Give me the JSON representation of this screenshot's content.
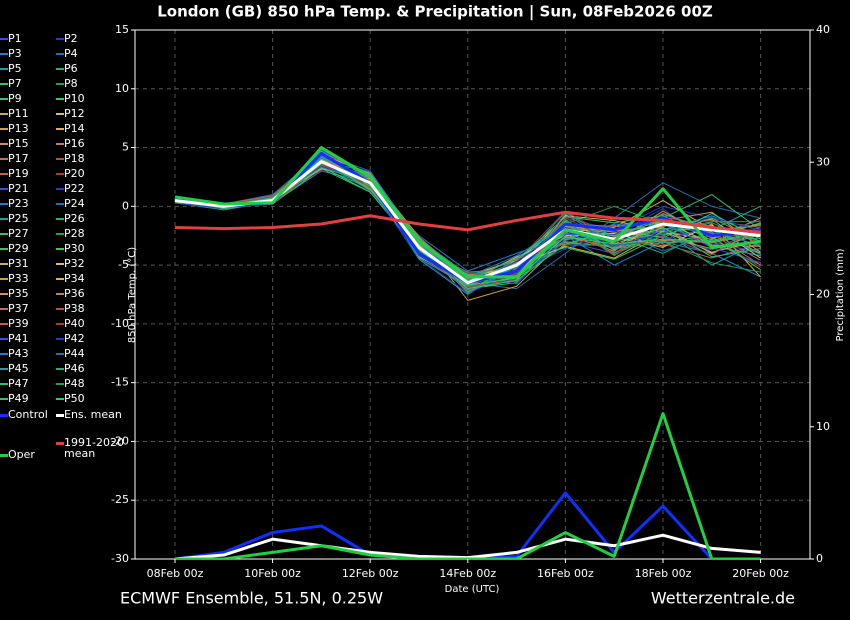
{
  "chart_data": {
    "type": "line",
    "title": "London  (GB)  850 hPa Temp. & Precipitation | Sun, 08Feb2026 00Z",
    "xlabel": "Date (UTC)",
    "ylabel": "850 hPa Temp. (°C)",
    "y2label": "Precipitation (mm)",
    "footer_left": "ECMWF Ensemble, 51.5N, 0.25W",
    "footer_right": "Wetterzentrale.de",
    "categories": [
      "08Feb 00z",
      null,
      "10Feb 00z",
      null,
      "12Feb 00z",
      null,
      "14Feb 00z",
      null,
      "16Feb 00z",
      null,
      "18Feb 00z",
      null,
      "20Feb 00z"
    ],
    "ylim": [
      -30,
      15
    ],
    "yticks": [
      -30,
      -25,
      -20,
      -15,
      -10,
      -5,
      0,
      5,
      10,
      15
    ],
    "y2lim": [
      0,
      40
    ],
    "y2ticks": [
      0,
      10,
      20,
      30,
      40
    ],
    "grid": true,
    "series": [
      {
        "name": "P1",
        "color": "#3050e0",
        "values": [
          0.6,
          0.1,
          0.2,
          3.5,
          2.5,
          -3,
          -6,
          -5.5,
          -3,
          -4,
          -2,
          -3,
          -4
        ]
      },
      {
        "name": "P2",
        "color": "#2040c0",
        "values": [
          0.4,
          -0.2,
          0.8,
          4.2,
          1.5,
          -4,
          -7,
          -6,
          -1,
          -2,
          0,
          -1,
          -2
        ]
      },
      {
        "name": "P3",
        "color": "#2080d0",
        "values": [
          0.7,
          0,
          0.3,
          3,
          2,
          -2.5,
          -5.5,
          -4,
          -2.5,
          -5,
          -3,
          -4,
          -6
        ]
      },
      {
        "name": "P4",
        "color": "#2070b0",
        "values": [
          0.5,
          0.2,
          1,
          4.5,
          3,
          -3,
          -6.5,
          -7,
          -4,
          -1,
          2,
          0,
          -1
        ]
      },
      {
        "name": "P5",
        "color": "#20a0a0",
        "values": [
          0.3,
          -0.3,
          0.4,
          3.8,
          1.8,
          -4.5,
          -7.5,
          -5,
          -0.5,
          -3,
          -2,
          -5,
          -3
        ]
      },
      {
        "name": "P6",
        "color": "#20b080",
        "values": [
          0.8,
          0.1,
          0.6,
          5,
          2.2,
          -3.2,
          -6,
          -4.5,
          -2,
          -2.5,
          -4,
          -2,
          0
        ]
      },
      {
        "name": "P7",
        "color": "#30c070",
        "values": [
          0.6,
          0,
          0.2,
          3.2,
          1.2,
          -3.8,
          -6.8,
          -6,
          -3,
          -3.5,
          -1,
          1,
          -2
        ]
      },
      {
        "name": "P8",
        "color": "#20a050",
        "values": [
          0.4,
          0.1,
          0.9,
          4,
          2.8,
          -2.8,
          -5.8,
          -5.2,
          -1.5,
          0,
          -1.5,
          -3,
          -5
        ]
      },
      {
        "name": "P9",
        "color": "#40c060",
        "values": [
          0.5,
          -0.1,
          0.5,
          3.6,
          2,
          -3.6,
          -7,
          -6.5,
          -2,
          -2,
          -3,
          -2.5,
          -1.5
        ]
      },
      {
        "name": "P10",
        "color": "#30d050",
        "values": [
          0.7,
          0.2,
          0.3,
          4.4,
          1.6,
          -3.4,
          -6.2,
          -4.8,
          -3.5,
          -4.5,
          -2.5,
          -1,
          -3
        ]
      },
      {
        "name": "P11",
        "color": "#c0b060",
        "values": [
          0.5,
          0,
          0.7,
          3.9,
          2.4,
          -4,
          -6.6,
          -5.4,
          -2.2,
          -1.8,
          0.5,
          -2,
          -4
        ]
      },
      {
        "name": "P12",
        "color": "#d0c070",
        "values": [
          0.6,
          -0.2,
          0.4,
          3.4,
          1.9,
          -3.1,
          -5.9,
          -4.6,
          -1.2,
          -3.2,
          -1.8,
          -4,
          -2
        ]
      },
      {
        "name": "P13",
        "color": "#d0a040",
        "values": [
          0.3,
          0.1,
          0.2,
          4.8,
          2.6,
          -2.6,
          -8,
          -6.8,
          -2.8,
          -2.6,
          -3.5,
          -1.5,
          -6
        ]
      },
      {
        "name": "P14",
        "color": "#e0b050",
        "values": [
          0.8,
          0,
          0.6,
          3.7,
          1.4,
          -3.9,
          -6.4,
          -5.1,
          -0.8,
          -1.2,
          -2.2,
          -2.8,
          -1
        ]
      },
      {
        "name": "P15",
        "color": "#d09060",
        "values": [
          0.5,
          0.2,
          0.5,
          4.1,
          2.1,
          -3.3,
          -6.1,
          -4.9,
          -2.4,
          -3.8,
          -1.2,
          -0.5,
          -3.5
        ]
      },
      {
        "name": "P16",
        "color": "#c08050",
        "values": [
          0.4,
          -0.1,
          0.8,
          3.3,
          2.7,
          -3.7,
          -7.2,
          -5.7,
          -1.8,
          -2.2,
          -2.6,
          -3.6,
          -2.4
        ]
      },
      {
        "name": "P17",
        "color": "#c07060",
        "values": [
          0.6,
          0.1,
          0.3,
          4.6,
          1.7,
          -2.9,
          -6.3,
          -4.4,
          -3.2,
          -3,
          -0.6,
          -2.2,
          -4.6
        ]
      },
      {
        "name": "P18",
        "color": "#b05040",
        "values": [
          0.7,
          0,
          0.4,
          3.9,
          2.3,
          -4.2,
          -6.9,
          -6.2,
          -1.4,
          -4.2,
          -1.6,
          -1.2,
          -1.8
        ]
      },
      {
        "name": "P19",
        "color": "#c06050",
        "values": [
          0.5,
          -0.2,
          0.6,
          4.3,
          1.3,
          -3.5,
          -5.6,
          -5.3,
          -2.6,
          -1.6,
          -3.2,
          -4.4,
          -3.2
        ]
      },
      {
        "name": "P20",
        "color": "#a04030",
        "values": [
          0.3,
          0.2,
          0.7,
          3.1,
          2.9,
          -3,
          -6.7,
          -4.7,
          -0.4,
          -2.8,
          -1,
          -2.6,
          -5.2
        ]
      },
      {
        "name": "P21",
        "color": "#3050e0",
        "values": [
          0.6,
          0,
          0.2,
          4,
          2,
          -3.6,
          -6.5,
          -5.8,
          -2.1,
          -3.4,
          -2.8,
          -1.8,
          -2.2
        ]
      },
      {
        "name": "P22",
        "color": "#2040c0",
        "values": [
          0.8,
          0.1,
          0.5,
          3.5,
          1.6,
          -4.4,
          -7.4,
          -5.6,
          -3.6,
          -2.4,
          -0.2,
          -3.2,
          -3.8
        ]
      },
      {
        "name": "P23",
        "color": "#2080d0",
        "values": [
          0.4,
          -0.1,
          0.3,
          4.7,
          2.5,
          -2.7,
          -6,
          -4.2,
          -1.6,
          -3.6,
          -2,
          -0.8,
          -2.6
        ]
      },
      {
        "name": "P24",
        "color": "#2070b0",
        "values": [
          0.5,
          0.2,
          0.9,
          3.6,
          1.8,
          -3.8,
          -6.2,
          -6.4,
          -2.9,
          -2,
          -3.8,
          -2.4,
          -1.2
        ]
      },
      {
        "name": "P25",
        "color": "#20a0a0",
        "values": [
          0.7,
          0,
          0.4,
          4.2,
          2.2,
          -3.2,
          -7.1,
          -5,
          -1.1,
          -4,
          -1.4,
          -3.4,
          -4.2
        ]
      },
      {
        "name": "P26",
        "color": "#20b080",
        "values": [
          0.3,
          0.1,
          0.6,
          3.3,
          1.5,
          -3.4,
          -5.7,
          -5.5,
          -2.3,
          -2.9,
          -2.4,
          -1.4,
          -3
        ]
      },
      {
        "name": "P27",
        "color": "#30c070",
        "values": [
          0.6,
          -0.2,
          0.5,
          4.9,
          2.6,
          -4.1,
          -6.6,
          -4.6,
          -0.9,
          -1.4,
          -0.8,
          -2.9,
          -2
        ]
      },
      {
        "name": "P28",
        "color": "#20a050",
        "values": [
          0.5,
          0.1,
          0.2,
          3.8,
          1.9,
          -2.8,
          -6.8,
          -6.1,
          -3.3,
          -3.3,
          -3,
          -4.8,
          -5.6
        ]
      },
      {
        "name": "P29",
        "color": "#40c060",
        "values": [
          0.4,
          0,
          0.8,
          4.1,
          2.4,
          -3.9,
          -6.3,
          -5.2,
          -1.9,
          -2.7,
          -1.9,
          -2.1,
          -1.6
        ]
      },
      {
        "name": "P30",
        "color": "#30d050",
        "values": [
          0.8,
          0.2,
          0.3,
          3.4,
          1.2,
          -3.3,
          -7.3,
          -4.9,
          -2.7,
          -1.9,
          -2.7,
          -0.6,
          -2.8
        ]
      },
      {
        "name": "P31",
        "color": "#c0b060",
        "values": [
          0.5,
          -0.1,
          0.7,
          4.4,
          2.8,
          -3.1,
          -5.9,
          -5.9,
          -1.3,
          -3.7,
          -1.1,
          -3.3,
          -3.4
        ]
      },
      {
        "name": "P32",
        "color": "#d0c070",
        "values": [
          0.6,
          0,
          0.4,
          3.7,
          2.1,
          -4.3,
          -6.4,
          -4.3,
          -2.5,
          -2.3,
          -3.4,
          -1.6,
          -4.4
        ]
      },
      {
        "name": "P33",
        "color": "#d0a040",
        "values": [
          0.4,
          0.1,
          0.5,
          4.5,
          1.7,
          -3.6,
          -7,
          -6.3,
          -0.7,
          -3.1,
          -0.4,
          -2.7,
          -1.4
        ]
      },
      {
        "name": "P34",
        "color": "#e0b050",
        "values": [
          0.7,
          -0.2,
          0.6,
          3.2,
          2.3,
          -2.9,
          -6.1,
          -5,
          -3.4,
          -4.4,
          -2.1,
          -3.9,
          -2.9
        ]
      },
      {
        "name": "P35",
        "color": "#d09060",
        "values": [
          0.5,
          0.2,
          0.3,
          4,
          2,
          -3.7,
          -6.7,
          -5.4,
          -1.7,
          -2.1,
          -1.7,
          -1.1,
          -3.9
        ]
      },
      {
        "name": "P36",
        "color": "#c08050",
        "values": [
          0.3,
          0,
          0.7,
          3.9,
          1.4,
          -3.2,
          -6.5,
          -4.8,
          -2.6,
          -3.5,
          -2.9,
          -3.1,
          -2.3
        ]
      },
      {
        "name": "P37",
        "color": "#c07060",
        "values": [
          0.6,
          0.1,
          0.4,
          4.6,
          2.7,
          -4,
          -5.8,
          -6,
          -1.5,
          -1.7,
          -1.3,
          -2.3,
          -5
        ]
      },
      {
        "name": "P38",
        "color": "#b05040",
        "values": [
          0.8,
          -0.1,
          0.2,
          3.5,
          1.8,
          -3.4,
          -7.2,
          -5.3,
          -2.2,
          -3.9,
          -2.5,
          -4.1,
          -1.7
        ]
      },
      {
        "name": "P39",
        "color": "#c06050",
        "values": [
          0.4,
          0.2,
          0.9,
          4.3,
          2.2,
          -2.6,
          -6.2,
          -4.5,
          -3.1,
          -2.6,
          -0.9,
          -1.7,
          -3.1
        ]
      },
      {
        "name": "P40",
        "color": "#a04030",
        "values": [
          0.5,
          0,
          0.5,
          3.6,
          1.6,
          -3.8,
          -6.9,
          -5.7,
          -1,
          -3,
          -3.3,
          -2.5,
          -2.5
        ]
      },
      {
        "name": "P41",
        "color": "#3050e0",
        "values": [
          0.7,
          0.1,
          0.3,
          4.8,
          2.5,
          -3.5,
          -6,
          -6.6,
          -2.4,
          -2.4,
          -1.5,
          -3.5,
          -4.8
        ]
      },
      {
        "name": "P42",
        "color": "#2040c0",
        "values": [
          0.3,
          -0.2,
          0.6,
          3.4,
          1.9,
          -4.2,
          -6.6,
          -4.7,
          -1.8,
          -3.3,
          -2.3,
          -0.9,
          -2.1
        ]
      },
      {
        "name": "P43",
        "color": "#2080d0",
        "values": [
          0.6,
          0.2,
          0.4,
          4.2,
          2.9,
          -3,
          -7.4,
          -5.1,
          -2.9,
          -1.5,
          -1.6,
          -2.2,
          -3.3
        ]
      },
      {
        "name": "P44",
        "color": "#2070b0",
        "values": [
          0.5,
          0,
          0.8,
          3.8,
          1.3,
          -3.6,
          -5.7,
          -5.9,
          -0.6,
          -3.4,
          -2.6,
          -3.7,
          -1.9
        ]
      },
      {
        "name": "P45",
        "color": "#20a0a0",
        "values": [
          0.4,
          0.1,
          0.2,
          4.1,
          2.4,
          -4.4,
          -6.8,
          -5.2,
          -2.7,
          -2.8,
          -0.7,
          -1.9,
          -4.1
        ]
      },
      {
        "name": "P46",
        "color": "#20b080",
        "values": [
          0.8,
          -0.1,
          0.6,
          3.3,
          2,
          -3.1,
          -6.3,
          -4.4,
          -1.6,
          -3.6,
          -3.1,
          -2.9,
          -2.7
        ]
      },
      {
        "name": "P47",
        "color": "#30c070",
        "values": [
          0.5,
          0.2,
          0.5,
          4.7,
          1.7,
          -3.3,
          -7,
          -6.3,
          -3.2,
          -2,
          -1.8,
          -4.3,
          -3.6
        ]
      },
      {
        "name": "P48",
        "color": "#20a050",
        "values": [
          0.6,
          0,
          0.3,
          3.6,
          2.6,
          -3.9,
          -6.1,
          -5.5,
          -1.2,
          -4.1,
          -2.2,
          -1.3,
          -1.3
        ]
      },
      {
        "name": "P49",
        "color": "#40c060",
        "values": [
          0.3,
          0.1,
          0.7,
          4.4,
          2.1,
          -2.7,
          -6.4,
          -4.9,
          -2,
          -2.5,
          -1.2,
          -2.6,
          -5.4
        ]
      },
      {
        "name": "P50",
        "color": "#30d050",
        "values": [
          0.7,
          -0.2,
          0.4,
          3.9,
          1.5,
          -3.7,
          -6.7,
          -6.1,
          -2.6,
          -3.2,
          -2.8,
          -3,
          -2.2
        ]
      },
      {
        "name": "Control",
        "color": "#1030ff",
        "values": [
          0.6,
          0,
          0.3,
          4.5,
          2,
          -4,
          -6.5,
          -5.5,
          -1.5,
          -2,
          -1,
          -2.5,
          -2
        ],
        "precip": [
          0,
          0.5,
          2,
          2.5,
          0.3,
          0,
          0,
          0.2,
          5,
          0.5,
          4,
          0,
          0
        ]
      },
      {
        "name": "Ens. mean",
        "color": "#ffffff",
        "values": [
          0.5,
          0,
          0.5,
          3.8,
          2,
          -3.5,
          -6.5,
          -5,
          -2,
          -2.8,
          -1.5,
          -2,
          -2.5
        ],
        "precip": [
          0,
          0.3,
          1.5,
          1,
          0.5,
          0.2,
          0.1,
          0.5,
          1.5,
          1,
          1.8,
          0.8,
          0.5
        ]
      },
      {
        "name": "Oper",
        "color": "#20d040",
        "values": [
          0.8,
          0.2,
          0.3,
          5,
          2.5,
          -3,
          -6,
          -6,
          -2,
          -3,
          1.5,
          -3.5,
          -3
        ],
        "precip": [
          0,
          0,
          0.5,
          1,
          0.3,
          0,
          0,
          0,
          2,
          0.2,
          11,
          0,
          0
        ]
      },
      {
        "name": "1991-2020 mean",
        "color": "#e04040",
        "values": [
          -1.8,
          -1.9,
          -1.8,
          -1.5,
          -0.8,
          -1.5,
          -2,
          -1.2,
          -0.5,
          -1,
          -1.2,
          -1.8,
          -2.2
        ]
      }
    ]
  }
}
